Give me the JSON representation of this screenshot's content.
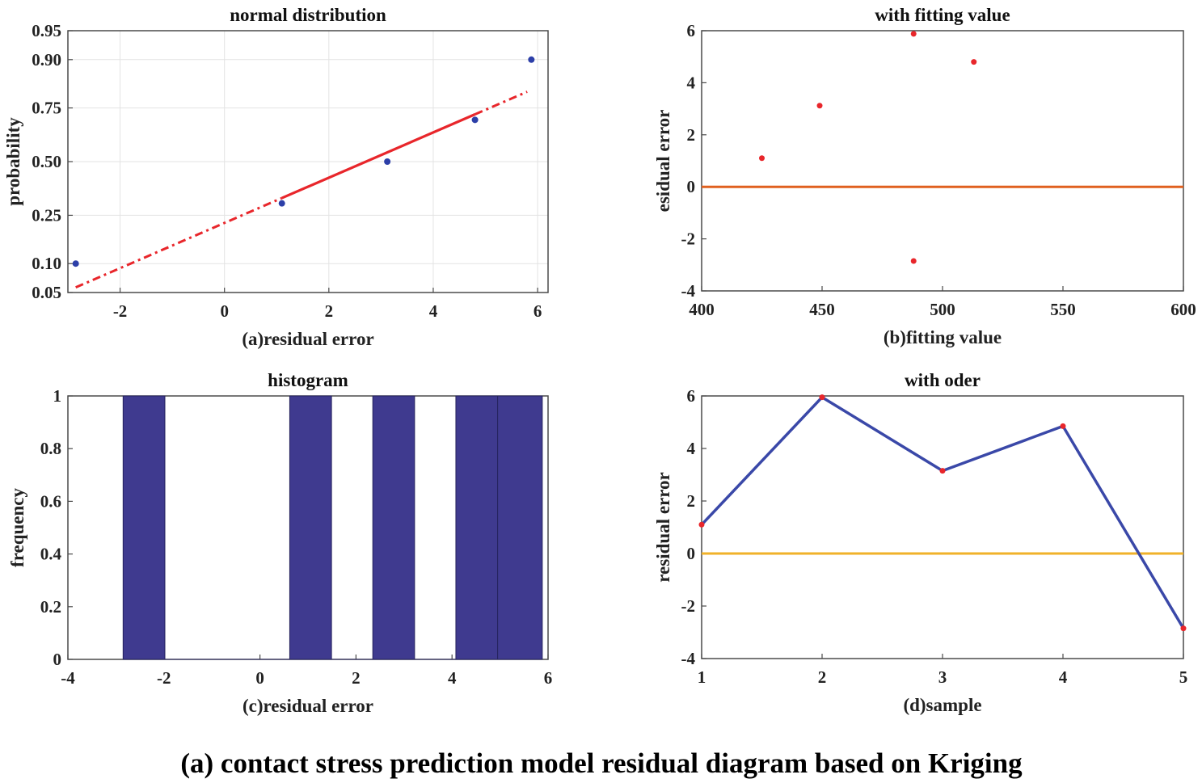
{
  "caption": "(a) contact stress prediction model residual diagram based on Kriging",
  "colors": {
    "marker_blue": "#2c3fa8",
    "marker_red": "#e8262b",
    "fit_line": "#e8262b",
    "zero_line_b": "#e0601f",
    "zero_line_d": "#f0b22a",
    "bar_fill": "#3f3a8f",
    "series_line": "#3a48a8"
  },
  "chart_data": [
    {
      "type": "scatter",
      "title": "normal distribution",
      "xlabel": "(a)residual error",
      "ylabel": "probability",
      "xlim": [
        -3,
        6.2
      ],
      "y_scale": "normal-probability",
      "xticks": [
        "-2",
        "0",
        "2",
        "4",
        "6"
      ],
      "yticks": [
        "0.05",
        "0.10",
        "0.25",
        "0.50",
        "0.75",
        "0.90",
        "0.95"
      ],
      "grid": true,
      "points": [
        {
          "x": -2.85,
          "y": 0.1
        },
        {
          "x": 1.1,
          "y": 0.3
        },
        {
          "x": 3.12,
          "y": 0.5
        },
        {
          "x": 4.8,
          "y": 0.7
        },
        {
          "x": 5.88,
          "y": 0.9
        }
      ],
      "reference_line": {
        "x_start": -2.85,
        "p_start": 0.057,
        "x_end": 5.8,
        "p_end": 0.81,
        "solid_from_x": 1.1,
        "solid_to_x": 4.8
      }
    },
    {
      "type": "scatter",
      "title": "with fitting value",
      "xlabel": "(b)fitting value",
      "ylabel": "esidual error",
      "xlim": [
        400,
        600
      ],
      "ylim": [
        -4,
        6
      ],
      "xticks": [
        "400",
        "450",
        "500",
        "550",
        "600"
      ],
      "yticks": [
        "-4",
        "-2",
        "0",
        "2",
        "4",
        "6"
      ],
      "grid": false,
      "points": [
        {
          "x": 425,
          "y": 1.1
        },
        {
          "x": 449,
          "y": 3.12
        },
        {
          "x": 488,
          "y": 5.88
        },
        {
          "x": 488,
          "y": -2.85
        },
        {
          "x": 513,
          "y": 4.8
        }
      ],
      "zero_line": 0
    },
    {
      "type": "bar",
      "title": "histogram",
      "xlabel": "(c)residual error",
      "ylabel": "frequency",
      "xlim": [
        -4,
        6
      ],
      "ylim": [
        0,
        1
      ],
      "xticks": [
        "-4",
        "-2",
        "0",
        "2",
        "4",
        "6"
      ],
      "yticks": [
        "0",
        "0.2",
        "0.4",
        "0.6",
        "0.8",
        "1"
      ],
      "grid": false,
      "bins": [
        {
          "x0": -2.85,
          "x1": -1.98,
          "value": 1
        },
        {
          "x0": -1.98,
          "x1": -1.12,
          "value": 0
        },
        {
          "x0": -1.12,
          "x1": -0.25,
          "value": 0
        },
        {
          "x0": -0.25,
          "x1": 0.62,
          "value": 0
        },
        {
          "x0": 0.62,
          "x1": 1.49,
          "value": 1
        },
        {
          "x0": 1.49,
          "x1": 2.35,
          "value": 0
        },
        {
          "x0": 2.35,
          "x1": 3.22,
          "value": 1
        },
        {
          "x0": 3.22,
          "x1": 4.08,
          "value": 0
        },
        {
          "x0": 4.08,
          "x1": 4.95,
          "value": 1
        },
        {
          "x0": 4.95,
          "x1": 5.88,
          "value": 1
        }
      ]
    },
    {
      "type": "line",
      "title": "with oder",
      "xlabel": "(d)sample",
      "ylabel": "residual error",
      "xlim": [
        1,
        5
      ],
      "ylim": [
        -4,
        6
      ],
      "xticks": [
        "1",
        "2",
        "3",
        "4",
        "5"
      ],
      "yticks": [
        "-4",
        "-2",
        "0",
        "2",
        "4",
        "6"
      ],
      "grid": false,
      "x": [
        1,
        2,
        3,
        4,
        5
      ],
      "values": [
        1.1,
        5.95,
        3.15,
        4.85,
        -2.85
      ],
      "zero_line": 0
    }
  ]
}
